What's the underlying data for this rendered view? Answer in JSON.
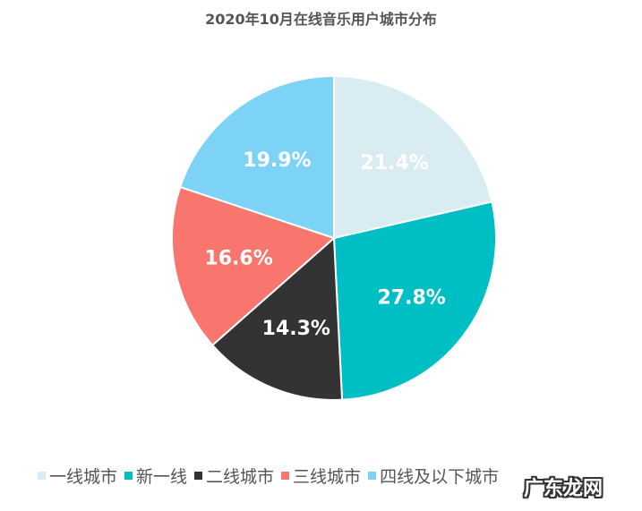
{
  "chart_data": {
    "type": "pie",
    "title": "2020年10月在线音乐用户城市分布",
    "categories": [
      "一线城市",
      "新一线",
      "二线城市",
      "三线城市",
      "四线及以下城市"
    ],
    "values": [
      21.4,
      27.8,
      14.3,
      16.6,
      19.9
    ],
    "labels": [
      "21.4%",
      "27.8%",
      "14.3%",
      "16.6%",
      "19.9%"
    ],
    "colors": [
      "#D8ECF2",
      "#00BFC4",
      "#333333",
      "#F8766D",
      "#7DD3F5"
    ],
    "start_angle": "12 o'clock, clockwise",
    "legend_position": "bottom"
  },
  "watermark": "广东龙网"
}
